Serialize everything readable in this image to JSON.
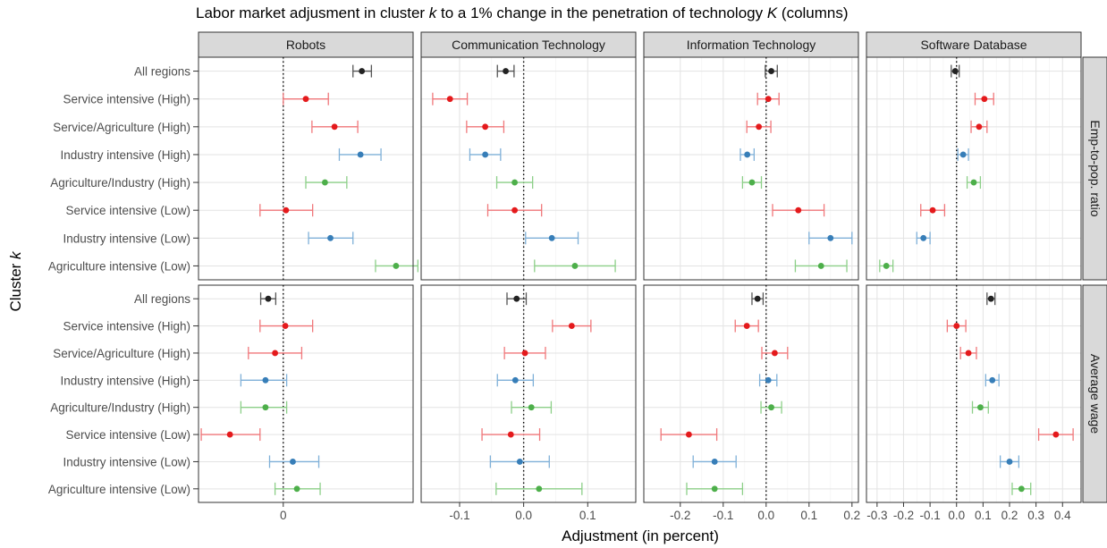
{
  "chart_data": {
    "type": "scatter",
    "variant": "faceted point-range (dot with horizontal confidence-interval whiskers)",
    "title_parts": [
      {
        "text": "Labor market adjusment in cluster ",
        "italic": false
      },
      {
        "text": "k",
        "italic": true
      },
      {
        "text": " to a 1% change in the penetration of technology ",
        "italic": false
      },
      {
        "text": "K",
        "italic": true
      },
      {
        "text": " (columns)",
        "italic": false
      }
    ],
    "xlabel": "Adjustment (in percent)",
    "ylabel_parts": [
      {
        "text": "Cluster ",
        "italic": false
      },
      {
        "text": "k",
        "italic": true
      }
    ],
    "grid": true,
    "reference_line": {
      "x": 0,
      "style": "dotted"
    },
    "categories": [
      "All regions",
      "Service intensive (High)",
      "Service/Agriculture (High)",
      "Industry intensive (High)",
      "Agriculture/Industry (High)",
      "Service intensive (Low)",
      "Industry intensive (Low)",
      "Agriculture intensive (Low)"
    ],
    "category_colors": [
      "#222222",
      "#e41a1c",
      "#e41a1c",
      "#377eb8",
      "#4daf4a",
      "#e41a1c",
      "#377eb8",
      "#4daf4a"
    ],
    "ci_colors": [
      "#555555",
      "#f0777a",
      "#f0777a",
      "#7fb0d8",
      "#8ccf88",
      "#f0777a",
      "#7fb0d8",
      "#8ccf88"
    ],
    "columns": [
      {
        "label": "Robots",
        "xlim": [
          -0.62,
          0.95
        ],
        "ticks": [
          0
        ],
        "tick_labels": [
          "0"
        ]
      },
      {
        "label": "Communication Technology",
        "xlim": [
          -0.16,
          0.175
        ],
        "ticks": [
          -0.1,
          0,
          0.1
        ],
        "tick_labels": [
          "-0.1",
          "0.0",
          "0.1"
        ]
      },
      {
        "label": "Information Technology",
        "xlim": [
          -0.285,
          0.215
        ],
        "ticks": [
          -0.2,
          -0.1,
          0,
          0.1,
          0.2
        ],
        "tick_labels": [
          "-0.2",
          "-0.1",
          "0.0",
          "0.1",
          "0.2"
        ]
      },
      {
        "label": "Software Database",
        "xlim": [
          -0.34,
          0.47
        ],
        "ticks": [
          -0.3,
          -0.2,
          -0.1,
          0,
          0.1,
          0.2,
          0.3,
          0.4
        ],
        "tick_labels": [
          "-0.3",
          "-0.2",
          "-0.1",
          "0.0",
          "0.1",
          "0.2",
          "0.3",
          "0.4"
        ]
      }
    ],
    "rows": [
      {
        "label": "Emp-to-pop. ratio"
      },
      {
        "label": "Average wage"
      }
    ],
    "panels": [
      [
        [
          {
            "est": 0.575,
            "lo": 0.51,
            "hi": 0.645
          },
          {
            "est": 0.165,
            "lo": 0.0,
            "hi": 0.33
          },
          {
            "est": 0.375,
            "lo": 0.21,
            "hi": 0.545
          },
          {
            "est": 0.565,
            "lo": 0.41,
            "hi": 0.715
          },
          {
            "est": 0.305,
            "lo": 0.165,
            "hi": 0.465
          },
          {
            "est": 0.02,
            "lo": -0.17,
            "hi": 0.215
          },
          {
            "est": 0.345,
            "lo": 0.185,
            "hi": 0.51
          },
          {
            "est": 0.825,
            "lo": 0.675,
            "hi": 0.985
          }
        ],
        [
          {
            "est": -0.028,
            "lo": -0.041,
            "hi": -0.015
          },
          {
            "est": -0.115,
            "lo": -0.142,
            "hi": -0.088
          },
          {
            "est": -0.06,
            "lo": -0.089,
            "hi": -0.031
          },
          {
            "est": -0.06,
            "lo": -0.084,
            "hi": -0.036
          },
          {
            "est": -0.014,
            "lo": -0.042,
            "hi": 0.014
          },
          {
            "est": -0.014,
            "lo": -0.056,
            "hi": 0.028
          },
          {
            "est": 0.044,
            "lo": 0.003,
            "hi": 0.085
          },
          {
            "est": 0.08,
            "lo": 0.017,
            "hi": 0.143
          }
        ],
        [
          {
            "est": 0.012,
            "lo": -0.002,
            "hi": 0.026
          },
          {
            "est": 0.005,
            "lo": -0.02,
            "hi": 0.03
          },
          {
            "est": -0.017,
            "lo": -0.045,
            "hi": 0.011
          },
          {
            "est": -0.044,
            "lo": -0.06,
            "hi": -0.028
          },
          {
            "est": -0.033,
            "lo": -0.055,
            "hi": -0.011
          },
          {
            "est": 0.075,
            "lo": 0.015,
            "hi": 0.135
          },
          {
            "est": 0.15,
            "lo": 0.1,
            "hi": 0.2
          },
          {
            "est": 0.128,
            "lo": 0.068,
            "hi": 0.188
          }
        ],
        [
          {
            "est": -0.005,
            "lo": -0.02,
            "hi": 0.01
          },
          {
            "est": 0.105,
            "lo": 0.07,
            "hi": 0.14
          },
          {
            "est": 0.085,
            "lo": 0.055,
            "hi": 0.115
          },
          {
            "est": 0.025,
            "lo": 0.005,
            "hi": 0.045
          },
          {
            "est": 0.065,
            "lo": 0.04,
            "hi": 0.09
          },
          {
            "est": -0.09,
            "lo": -0.135,
            "hi": -0.045
          },
          {
            "est": -0.125,
            "lo": -0.15,
            "hi": -0.1
          },
          {
            "est": -0.265,
            "lo": -0.29,
            "hi": -0.24
          }
        ]
      ],
      [
        [
          {
            "est": -0.11,
            "lo": -0.165,
            "hi": -0.055
          },
          {
            "est": 0.015,
            "lo": -0.17,
            "hi": 0.215
          },
          {
            "est": -0.06,
            "lo": -0.255,
            "hi": 0.135
          },
          {
            "est": -0.13,
            "lo": -0.31,
            "hi": 0.025
          },
          {
            "est": -0.13,
            "lo": -0.31,
            "hi": 0.025
          },
          {
            "est": -0.39,
            "lo": -0.6,
            "hi": -0.17
          },
          {
            "est": 0.07,
            "lo": -0.1,
            "hi": 0.26
          },
          {
            "est": 0.1,
            "lo": -0.06,
            "hi": 0.27
          }
        ],
        [
          {
            "est": -0.011,
            "lo": -0.026,
            "hi": 0.004
          },
          {
            "est": 0.075,
            "lo": 0.045,
            "hi": 0.105
          },
          {
            "est": 0.002,
            "lo": -0.03,
            "hi": 0.034
          },
          {
            "est": -0.013,
            "lo": -0.041,
            "hi": 0.015
          },
          {
            "est": 0.012,
            "lo": -0.019,
            "hi": 0.043
          },
          {
            "est": -0.02,
            "lo": -0.065,
            "hi": 0.025
          },
          {
            "est": -0.006,
            "lo": -0.052,
            "hi": 0.04
          },
          {
            "est": 0.024,
            "lo": -0.043,
            "hi": 0.091
          }
        ],
        [
          {
            "est": -0.02,
            "lo": -0.033,
            "hi": -0.007
          },
          {
            "est": -0.045,
            "lo": -0.072,
            "hi": -0.018
          },
          {
            "est": 0.02,
            "lo": -0.01,
            "hi": 0.05
          },
          {
            "est": 0.005,
            "lo": -0.015,
            "hi": 0.025
          },
          {
            "est": 0.012,
            "lo": -0.012,
            "hi": 0.036
          },
          {
            "est": -0.18,
            "lo": -0.245,
            "hi": -0.115
          },
          {
            "est": -0.12,
            "lo": -0.17,
            "hi": -0.07
          },
          {
            "est": -0.12,
            "lo": -0.185,
            "hi": -0.055
          }
        ],
        [
          {
            "est": 0.13,
            "lo": 0.115,
            "hi": 0.145
          },
          {
            "est": 0.0,
            "lo": -0.035,
            "hi": 0.035
          },
          {
            "est": 0.045,
            "lo": 0.015,
            "hi": 0.075
          },
          {
            "est": 0.135,
            "lo": 0.11,
            "hi": 0.16
          },
          {
            "est": 0.09,
            "lo": 0.06,
            "hi": 0.12
          },
          {
            "est": 0.375,
            "lo": 0.31,
            "hi": 0.44
          },
          {
            "est": 0.2,
            "lo": 0.165,
            "hi": 0.235
          },
          {
            "est": 0.245,
            "lo": 0.21,
            "hi": 0.28
          }
        ]
      ]
    ]
  }
}
